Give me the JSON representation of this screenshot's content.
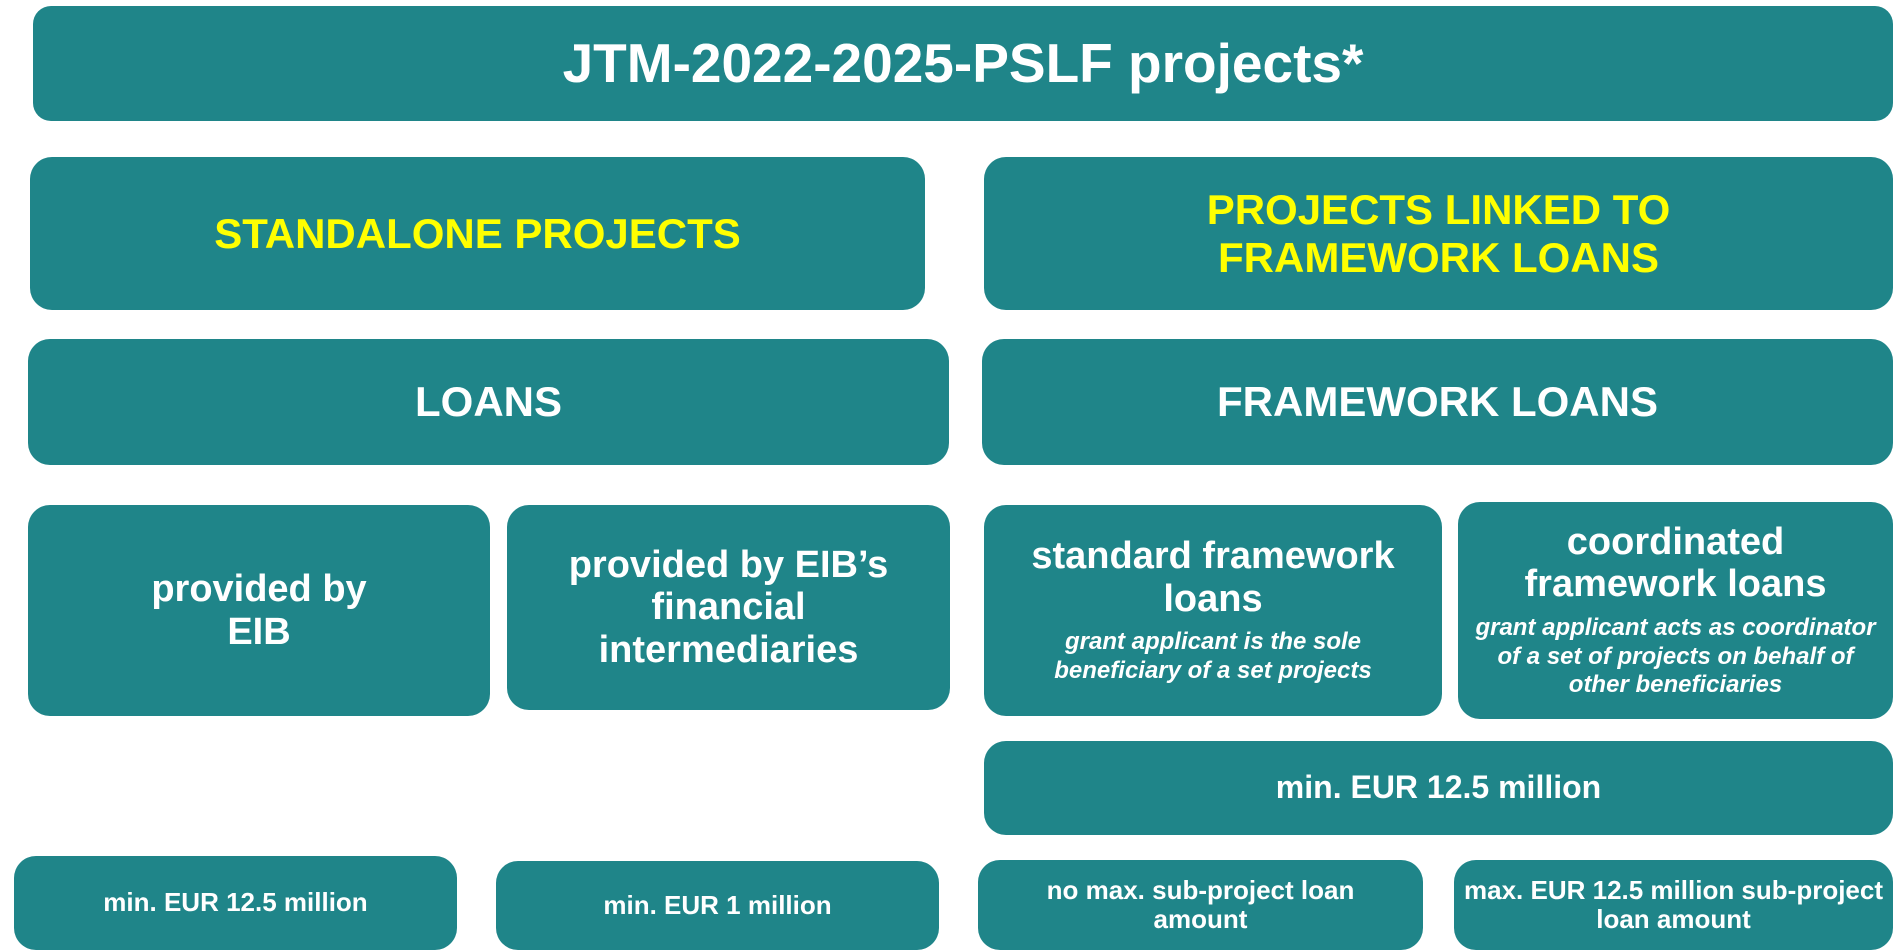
{
  "title": "JTM-2022-2025-PSLF projects*",
  "boxes": [
    {
      "text": "STANDALONE PROJECTS"
    },
    {
      "text": "PROJECTS LINKED TO FRAMEWORK LOANS"
    },
    {
      "text": "LOANS"
    },
    {
      "text": "FRAMEWORK LOANS"
    },
    {
      "text": "provided by EIB"
    },
    {
      "text": "provided by EIB’s financial intermediaries"
    },
    {
      "text": "standard framework loans",
      "note": "grant applicant is the sole beneficiary of a set  projects"
    },
    {
      "text": "coordinated framework loans",
      "note": "grant applicant acts as coordinator of a set of projects on behalf of other beneficiaries"
    },
    {
      "text": "min. EUR 12.5 million"
    },
    {
      "text": "min. EUR 12.5 million"
    },
    {
      "text": "min. EUR 1 million"
    },
    {
      "text": "no max. sub-project loan amount"
    },
    {
      "text": "max. EUR 12.5 million sub-project loan amount"
    }
  ]
}
